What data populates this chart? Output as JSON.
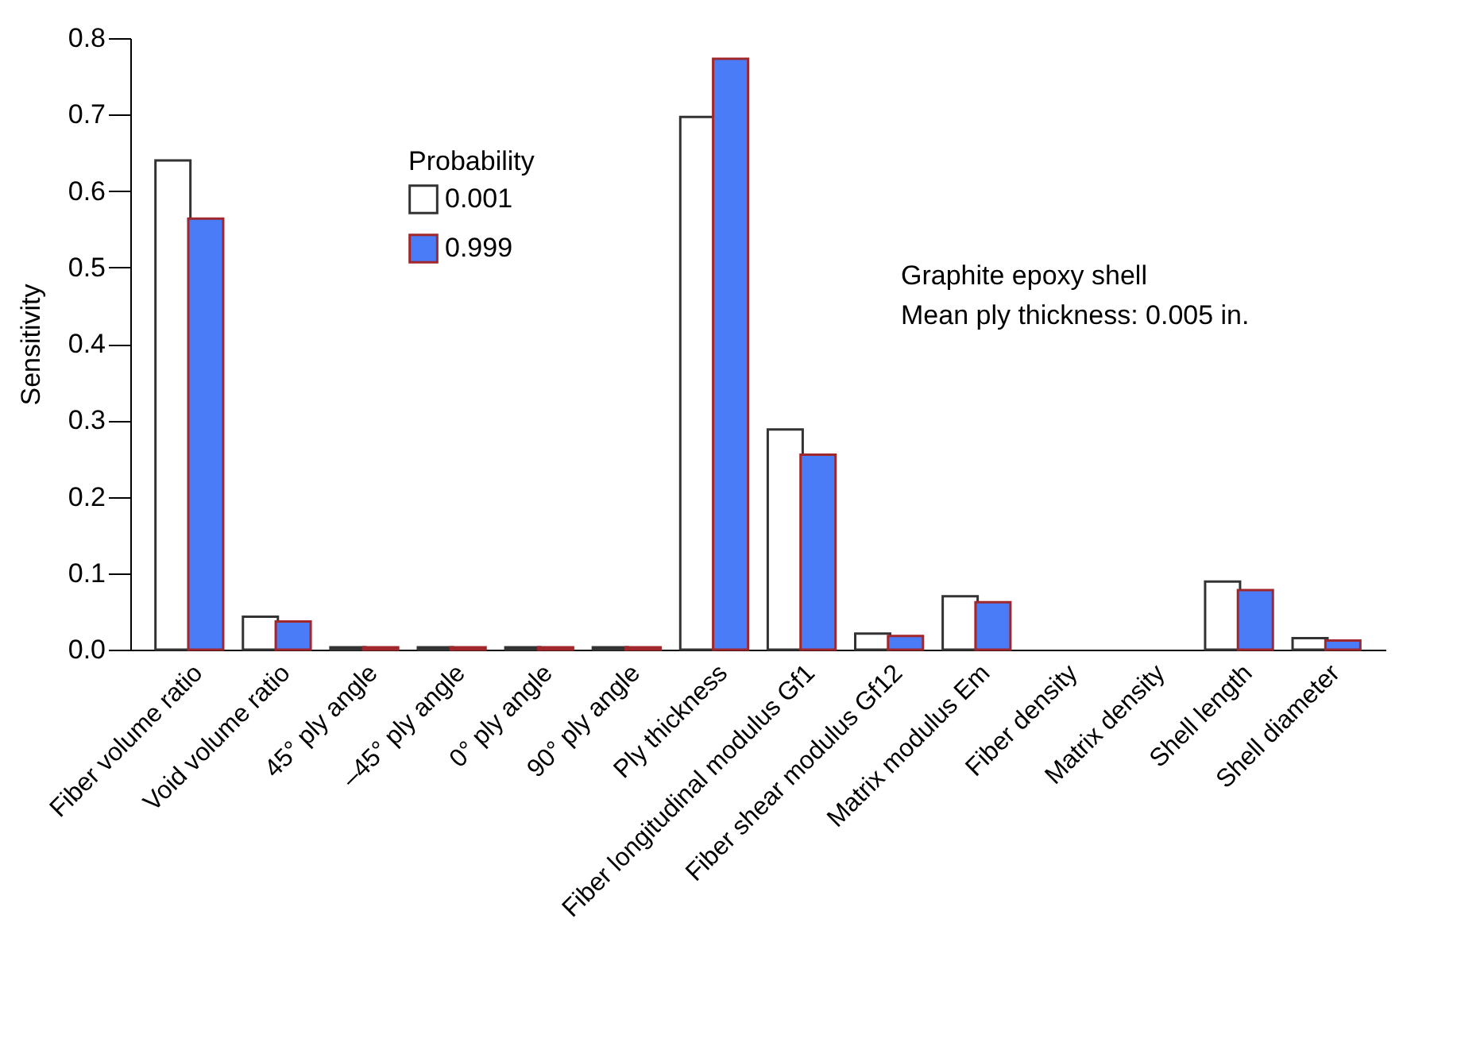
{
  "chart_data": {
    "type": "bar",
    "ylabel": "Sensitivity",
    "legend_title": "Probability",
    "categories": [
      "Fiber volume ratio",
      "Void volume ratio",
      "45° ply angle",
      "–45° ply angle",
      "0° ply angle",
      "90° ply angle",
      "Ply thickness",
      "Fiber longitudinal modulus Gf1",
      "Fiber shear modulus Gf12",
      "Matrix modulus Em",
      "Fiber density",
      "Matrix density",
      "Shell length",
      "Shell diameter"
    ],
    "series": [
      {
        "name": "0.001",
        "color": "#ffffff",
        "values": [
          0.64,
          0.043,
          0.003,
          0.003,
          0.003,
          0.003,
          0.697,
          0.288,
          0.021,
          0.07,
          0,
          0,
          0.089,
          0.015
        ]
      },
      {
        "name": "0.999",
        "color": "#4a7cf7",
        "values": [
          0.564,
          0.037,
          0.003,
          0.003,
          0.003,
          0.003,
          0.773,
          0.255,
          0.018,
          0.062,
          0,
          0,
          0.078,
          0.012
        ]
      }
    ],
    "ylim": [
      0,
      0.8
    ],
    "yticks": [
      {
        "value": 0,
        "label": "0.0"
      },
      0.1,
      0.2,
      0.3,
      0.4,
      0.5,
      0.6,
      0.7,
      0.8
    ],
    "grid": false,
    "legend": "top left",
    "annotations": [
      "Graphite epoxy shell",
      "Mean ply thickness: 0.005 in."
    ]
  }
}
